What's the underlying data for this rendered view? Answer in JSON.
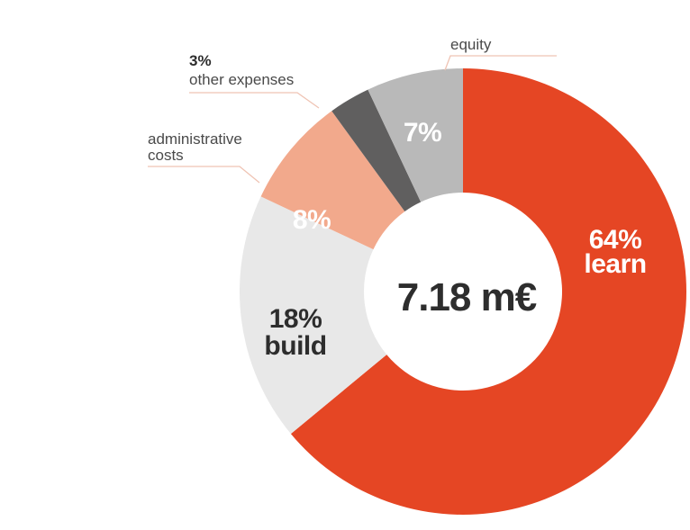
{
  "chart_data": {
    "type": "pie",
    "donut": true,
    "center_label": "7.18 m€",
    "slices": [
      {
        "key": "learn",
        "value": 64,
        "pct_label": "64%",
        "name": "learn",
        "color": "#e54624"
      },
      {
        "key": "build",
        "value": 18,
        "pct_label": "18%",
        "name": "build",
        "color": "#e8e8e8"
      },
      {
        "key": "admin",
        "value": 8,
        "pct_label": "8%",
        "name": "administrative costs",
        "color": "#f2a98c"
      },
      {
        "key": "other",
        "value": 3,
        "pct_label": "3%",
        "name": "other expenses",
        "color": "#605f5f"
      },
      {
        "key": "equity",
        "value": 7,
        "pct_label": "7%",
        "name": "equity",
        "color": "#b9b9b9"
      }
    ],
    "callouts": {
      "equity": "equity",
      "other_pct": "3%",
      "other_text": "other expenses",
      "admin_line1": "administrative",
      "admin_line2": "costs"
    },
    "legend": "none"
  }
}
